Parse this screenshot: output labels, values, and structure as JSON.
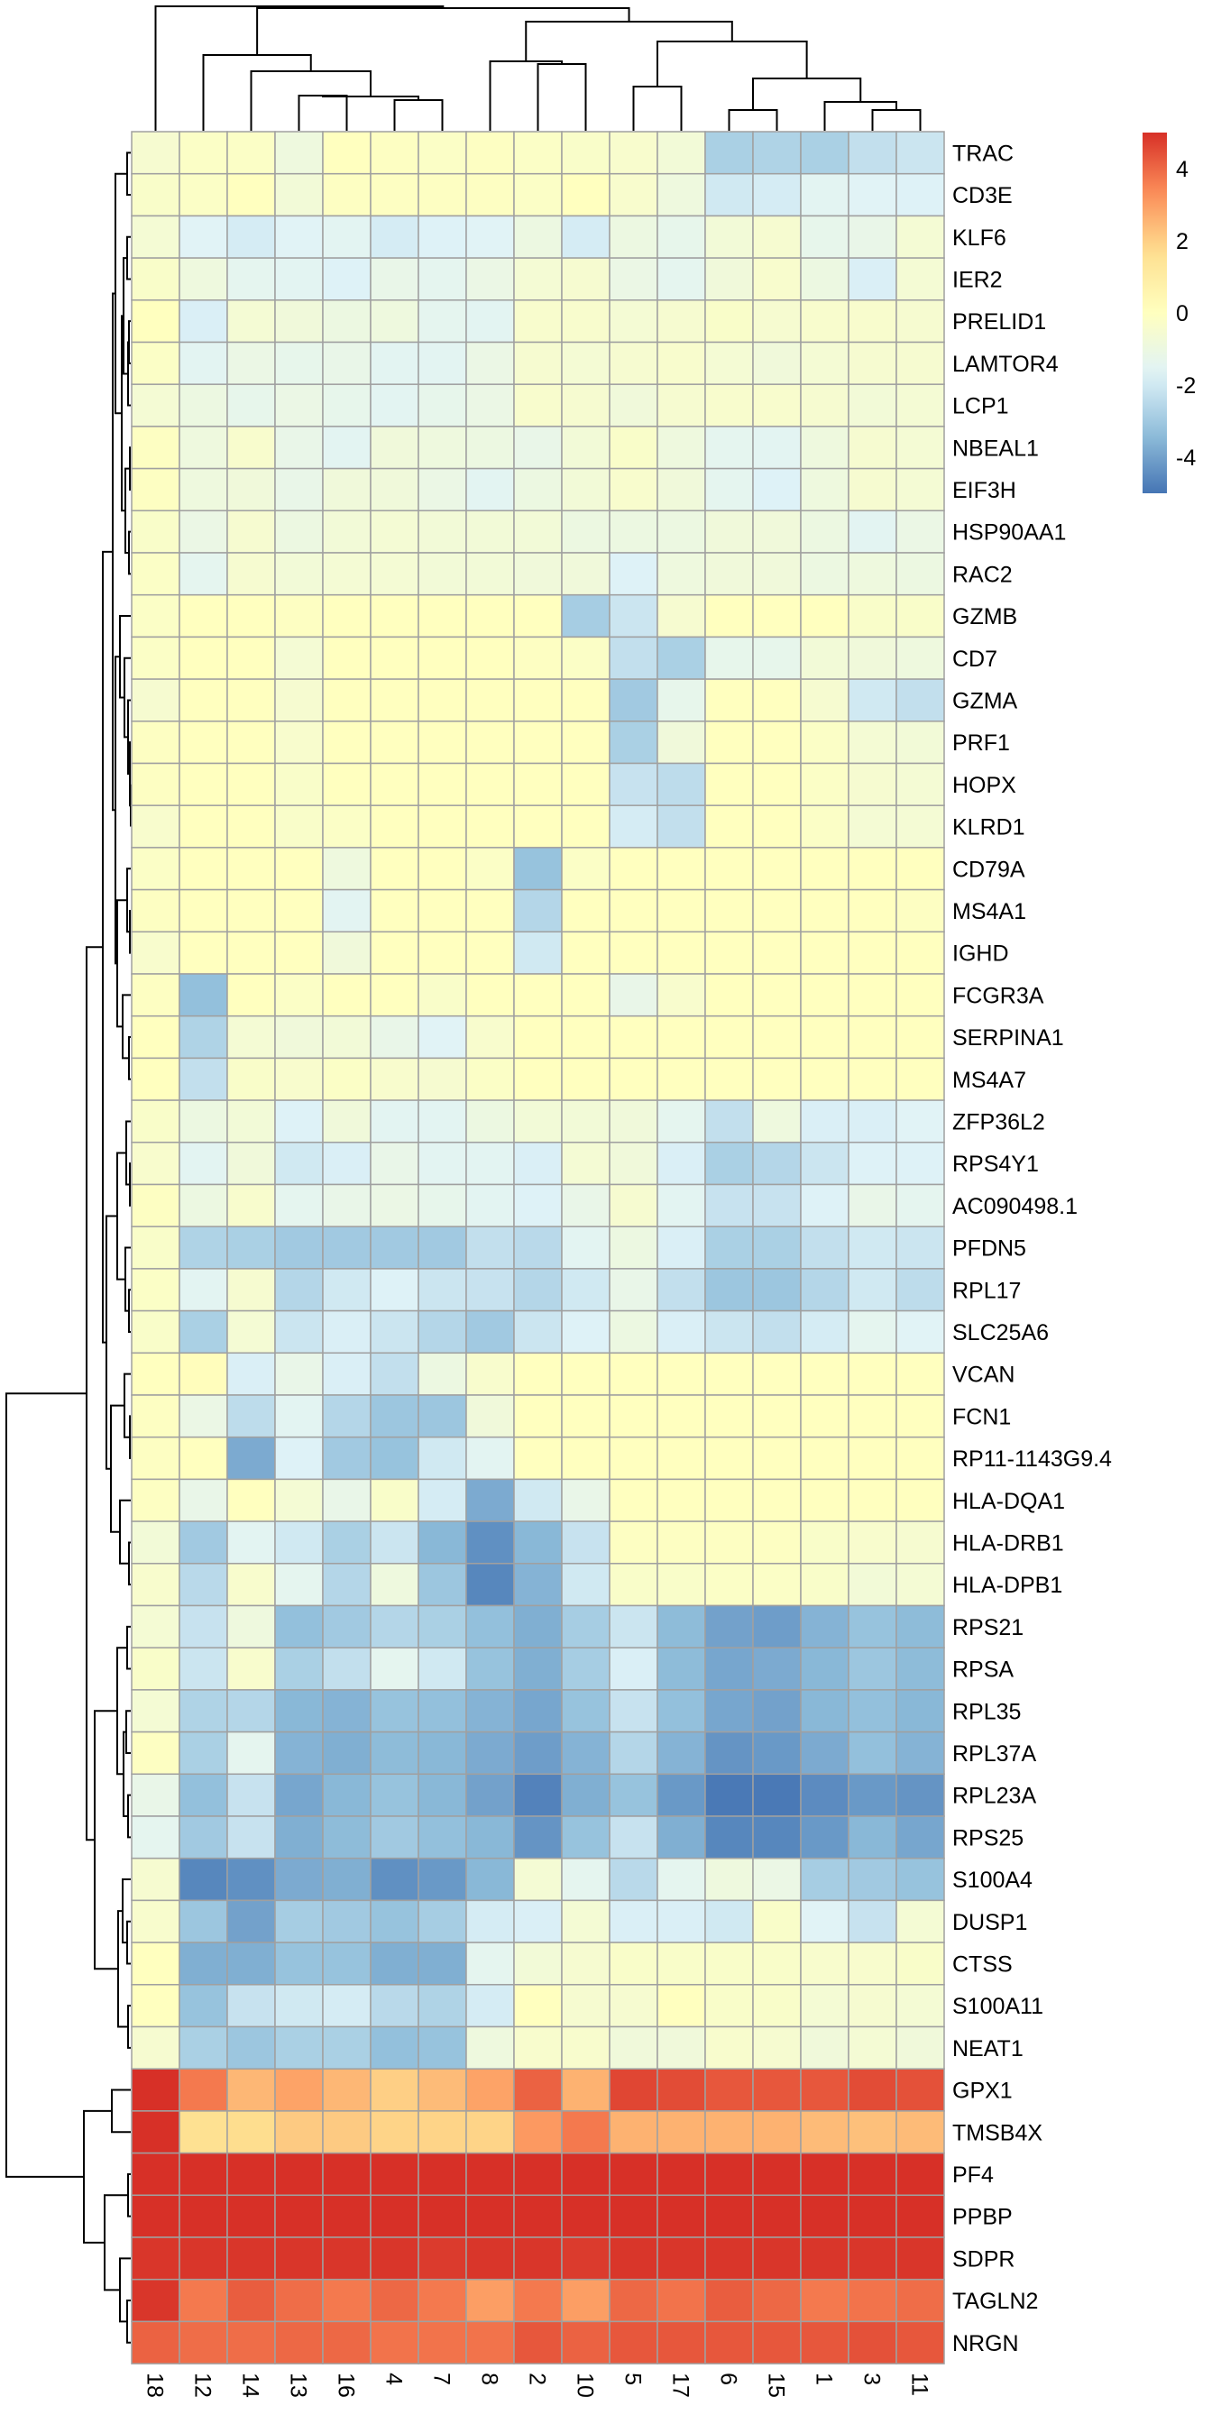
{
  "chart_data": {
    "type": "heatmap",
    "title": "",
    "columns": [
      "18",
      "12",
      "14",
      "13",
      "16",
      "4",
      "7",
      "8",
      "2",
      "10",
      "5",
      "17",
      "6",
      "15",
      "1",
      "3",
      "11"
    ],
    "rows": [
      "TRAC",
      "CD3E",
      "KLF6",
      "IER2",
      "PRELID1",
      "LAMTOR4",
      "LCP1",
      "NBEAL1",
      "EIF3H",
      "HSP90AA1",
      "RAC2",
      "GZMB",
      "CD7",
      "GZMA",
      "PRF1",
      "HOPX",
      "KLRD1",
      "CD79A",
      "MS4A1",
      "IGHD",
      "FCGR3A",
      "SERPINA1",
      "MS4A7",
      "ZFP36L2",
      "RPS4Y1",
      "AC090498.1",
      "PFDN5",
      "RPL17",
      "SLC25A6",
      "VCAN",
      "FCN1",
      "RP11-1143G9.4",
      "HLA-DQA1",
      "HLA-DRB1",
      "HLA-DPB1",
      "RPS21",
      "RPSA",
      "RPL35",
      "RPL37A",
      "RPL23A",
      "RPS25",
      "S100A4",
      "DUSP1",
      "CTSS",
      "S100A11",
      "NEAT1",
      "GPX1",
      "TMSB4X",
      "PF4",
      "PPBP",
      "SDPR",
      "TAGLN2",
      "NRGN"
    ],
    "values": [
      [
        -0.5,
        -0.2,
        -0.2,
        -0.9,
        0,
        -0.1,
        -0.2,
        -0.1,
        -0.2,
        -0.3,
        -0.4,
        -0.7,
        -2.8,
        -2.7,
        -2.8,
        -2.3,
        -2.1
      ],
      [
        -0.3,
        -0.2,
        0,
        -0.7,
        -0.1,
        -0.1,
        -0.1,
        -0.1,
        -0.2,
        0,
        -0.4,
        -0.9,
        -2.0,
        -1.9,
        -1.5,
        -1.6,
        -1.7
      ],
      [
        -0.6,
        -1.6,
        -1.9,
        -1.6,
        -1.5,
        -1.9,
        -1.7,
        -1.6,
        -1.0,
        -1.9,
        -1.0,
        -1.3,
        -0.7,
        -0.5,
        -1.3,
        -1.2,
        -0.6
      ],
      [
        -0.3,
        -0.9,
        -1.4,
        -1.5,
        -1.7,
        -1.2,
        -1.4,
        -1.1,
        -0.6,
        -0.5,
        -1.1,
        -1.4,
        -0.8,
        -0.4,
        -1.0,
        -1.8,
        -0.6
      ],
      [
        0,
        -1.8,
        -0.6,
        -0.8,
        -1.0,
        -0.9,
        -1.4,
        -1.5,
        -0.4,
        -0.4,
        -0.6,
        -0.5,
        -0.3,
        -0.5,
        -0.4,
        -0.4,
        -0.5
      ],
      [
        -0.2,
        -1.5,
        -1.1,
        -1.3,
        -1.2,
        -1.5,
        -1.5,
        -1.1,
        -0.5,
        -0.6,
        -0.5,
        -0.4,
        -0.6,
        -0.8,
        -0.6,
        -0.5,
        -0.5
      ],
      [
        -0.6,
        -1.0,
        -1.3,
        -1.1,
        -1.3,
        -1.5,
        -1.3,
        -1.1,
        -0.4,
        -0.5,
        -0.8,
        -0.5,
        -0.4,
        -0.4,
        -0.5,
        -0.7,
        -0.6
      ],
      [
        -0.1,
        -0.9,
        -0.4,
        -1.2,
        -1.5,
        -0.8,
        -0.9,
        -1.0,
        -1.2,
        -0.7,
        -0.3,
        -0.9,
        -1.4,
        -1.5,
        -0.9,
        -0.5,
        -0.6
      ],
      [
        -0.1,
        -0.9,
        -0.8,
        -1.2,
        -0.8,
        -0.8,
        -1.1,
        -1.5,
        -1.0,
        -0.7,
        -0.4,
        -0.8,
        -1.4,
        -1.7,
        -0.9,
        -0.5,
        -0.6
      ],
      [
        -0.3,
        -1.1,
        -0.5,
        -1.0,
        -0.7,
        -0.6,
        -0.7,
        -0.7,
        -0.7,
        -1.0,
        -1.0,
        -1.0,
        -0.8,
        -0.8,
        -1.0,
        -1.5,
        -1.1
      ],
      [
        -0.2,
        -1.4,
        -0.5,
        -0.7,
        -0.6,
        -0.6,
        -0.7,
        -0.7,
        -0.8,
        -0.8,
        -1.7,
        -0.9,
        -0.8,
        -0.8,
        -1.0,
        -0.9,
        -1.0
      ],
      [
        -0.2,
        0,
        0,
        -0.1,
        0,
        0,
        0,
        0,
        0,
        -2.9,
        -2.1,
        -0.5,
        0,
        0,
        0,
        -0.3,
        -0.3
      ],
      [
        -0.2,
        0,
        0,
        -0.6,
        0,
        0,
        0,
        0,
        -0.1,
        -0.2,
        -2.3,
        -2.8,
        -1.3,
        -1.3,
        -0.7,
        -0.8,
        -0.9
      ],
      [
        -0.5,
        0,
        0,
        -0.5,
        0,
        0,
        0,
        0,
        0,
        0,
        -3.0,
        -1.3,
        0,
        0,
        -0.5,
        -2.0,
        -2.3
      ],
      [
        -0.1,
        0,
        0,
        -0.4,
        0,
        0,
        0,
        0,
        0,
        0,
        -2.8,
        -0.8,
        0,
        0,
        -0.2,
        -0.6,
        -0.7
      ],
      [
        -0.1,
        0,
        0,
        -0.3,
        0,
        0,
        0,
        0,
        0,
        0,
        -2.2,
        -2.4,
        0,
        0,
        -0.2,
        -0.5,
        -0.6
      ],
      [
        -0.4,
        0,
        0,
        -0.3,
        -0.2,
        0,
        0,
        0,
        0,
        0,
        -1.9,
        -2.3,
        0,
        0,
        -0.2,
        -0.6,
        -0.6
      ],
      [
        -0.2,
        0,
        0,
        0,
        -0.9,
        0,
        0,
        -0.2,
        -3.2,
        -0.2,
        0,
        0,
        0,
        0,
        0,
        0,
        0
      ],
      [
        -0.1,
        0,
        0,
        0,
        -1.5,
        0,
        0,
        0,
        -2.6,
        0,
        0,
        0,
        0,
        0,
        0,
        0,
        -0.1
      ],
      [
        -0.4,
        0,
        0,
        0,
        -0.8,
        0,
        0,
        0,
        -2.0,
        0,
        0,
        0,
        0,
        0,
        0,
        0,
        0
      ],
      [
        -0.1,
        -3.3,
        0,
        -0.2,
        0,
        0,
        -0.3,
        0,
        0,
        0,
        -1.2,
        -0.4,
        0,
        0,
        0,
        0,
        0
      ],
      [
        0,
        -2.7,
        -0.6,
        -0.8,
        -0.7,
        -1.2,
        -1.6,
        -0.4,
        0,
        0,
        0,
        0,
        0,
        0,
        0,
        0,
        0
      ],
      [
        0,
        -2.3,
        -0.3,
        -0.4,
        -0.2,
        -0.4,
        -0.5,
        -0.2,
        0,
        0,
        0,
        0,
        0,
        0,
        0,
        0,
        0
      ],
      [
        -0.3,
        -1.0,
        -0.7,
        -1.7,
        -0.8,
        -1.5,
        -1.5,
        -1.0,
        -0.7,
        -0.7,
        -0.8,
        -1.4,
        -2.3,
        -0.9,
        -1.8,
        -1.8,
        -1.6
      ],
      [
        -0.4,
        -1.5,
        -0.8,
        -2.0,
        -1.8,
        -1.2,
        -1.5,
        -1.5,
        -1.8,
        -0.6,
        -0.8,
        -1.8,
        -2.8,
        -2.6,
        -2.1,
        -1.7,
        -1.7
      ],
      [
        -0.1,
        -1.0,
        -0.4,
        -1.4,
        -1.2,
        -1.1,
        -1.3,
        -1.5,
        -1.7,
        -1.2,
        -0.5,
        -1.5,
        -2.2,
        -2.2,
        -1.7,
        -1.2,
        -1.4
      ],
      [
        -0.3,
        -2.7,
        -2.8,
        -3.0,
        -3.0,
        -3.0,
        -3.0,
        -2.3,
        -2.5,
        -1.5,
        -1.0,
        -1.8,
        -2.8,
        -2.8,
        -2.3,
        -2.0,
        -2.1
      ],
      [
        -0.2,
        -1.5,
        -0.5,
        -2.6,
        -2.0,
        -1.7,
        -2.1,
        -2.2,
        -2.6,
        -2.0,
        -1.2,
        -2.3,
        -3.1,
        -3.1,
        -2.6,
        -2.0,
        -2.4
      ],
      [
        -0.3,
        -2.8,
        -0.6,
        -2.1,
        -1.8,
        -2.1,
        -2.6,
        -3.0,
        -2.1,
        -1.7,
        -1.0,
        -1.8,
        -2.1,
        -2.3,
        -1.9,
        -1.4,
        -1.6
      ],
      [
        0,
        0.1,
        -1.8,
        -1.2,
        -1.8,
        -2.3,
        -1.0,
        -0.4,
        0,
        0,
        0,
        0,
        0,
        0,
        0,
        0,
        0
      ],
      [
        -0.1,
        -1.1,
        -2.4,
        -1.5,
        -2.6,
        -3.1,
        -3.1,
        -0.8,
        0,
        0,
        0,
        0,
        0,
        0,
        0,
        0,
        0
      ],
      [
        -0.1,
        0,
        -3.8,
        -1.7,
        -3.0,
        -3.2,
        -2.0,
        -1.5,
        0,
        0,
        0,
        0,
        0,
        0,
        0,
        0,
        0
      ],
      [
        -0.1,
        -1.2,
        0,
        -0.6,
        -1.2,
        -0.3,
        -1.9,
        -3.8,
        -2.0,
        -1.2,
        0,
        0,
        0,
        0,
        0,
        0,
        0
      ],
      [
        -0.7,
        -3.0,
        -1.5,
        -2.0,
        -2.8,
        -2.1,
        -3.5,
        -4.4,
        -3.5,
        -2.2,
        -0.1,
        -0.1,
        -0.1,
        -0.1,
        -0.3,
        -0.4,
        -0.5
      ],
      [
        -0.4,
        -2.5,
        -0.4,
        -1.4,
        -2.6,
        -0.9,
        -3.1,
        -4.6,
        -3.6,
        -2.0,
        -0.3,
        -0.3,
        -0.2,
        -0.2,
        -0.3,
        -0.7,
        -0.6
      ],
      [
        -0.6,
        -2.2,
        -0.9,
        -3.3,
        -3.0,
        -2.6,
        -2.8,
        -3.3,
        -3.7,
        -2.9,
        -2.1,
        -3.4,
        -4.0,
        -4.1,
        -3.6,
        -3.2,
        -3.4
      ],
      [
        -0.3,
        -2.1,
        -0.4,
        -2.8,
        -2.3,
        -1.4,
        -2.0,
        -3.2,
        -3.7,
        -2.9,
        -1.8,
        -3.4,
        -3.9,
        -3.8,
        -3.5,
        -3.1,
        -3.4
      ],
      [
        -0.6,
        -2.7,
        -2.6,
        -3.5,
        -3.6,
        -3.2,
        -3.3,
        -3.6,
        -3.9,
        -3.2,
        -2.2,
        -3.3,
        -3.9,
        -4.0,
        -3.5,
        -3.3,
        -3.5
      ],
      [
        -0.1,
        -2.8,
        -1.4,
        -3.6,
        -3.7,
        -3.4,
        -3.5,
        -3.8,
        -4.1,
        -3.6,
        -2.6,
        -3.6,
        -4.3,
        -4.2,
        -3.8,
        -3.3,
        -3.6
      ],
      [
        -1.2,
        -3.3,
        -2.2,
        -3.9,
        -3.5,
        -3.2,
        -3.5,
        -4.0,
        -4.7,
        -3.7,
        -3.2,
        -4.2,
        -4.9,
        -4.9,
        -4.5,
        -4.2,
        -4.3
      ],
      [
        -1.4,
        -3.0,
        -2.2,
        -3.7,
        -3.4,
        -3.0,
        -3.3,
        -3.5,
        -4.3,
        -3.2,
        -2.2,
        -3.7,
        -4.6,
        -4.6,
        -4.2,
        -3.5,
        -3.9
      ],
      [
        -0.5,
        -4.6,
        -4.4,
        -3.8,
        -3.7,
        -4.4,
        -4.2,
        -3.5,
        -0.6,
        -1.4,
        -2.5,
        -1.4,
        -0.9,
        -1.1,
        -2.9,
        -3.0,
        -3.2
      ],
      [
        -0.4,
        -3.1,
        -4.0,
        -2.9,
        -3.0,
        -3.2,
        -2.9,
        -1.9,
        -1.8,
        -0.6,
        -1.8,
        -1.8,
        -2.0,
        -0.3,
        -1.6,
        -2.2,
        -0.6
      ],
      [
        0,
        -3.7,
        -3.7,
        -3.2,
        -3.2,
        -3.7,
        -3.7,
        -1.4,
        -0.7,
        -0.5,
        -0.3,
        -0.3,
        -0.3,
        -0.3,
        -0.4,
        -0.4,
        -0.3
      ],
      [
        0,
        -3.2,
        -2.2,
        -2.0,
        -1.9,
        -2.5,
        -2.7,
        -1.9,
        0,
        -0.5,
        -0.5,
        0,
        -0.3,
        -0.3,
        -0.6,
        -0.5,
        -0.6
      ],
      [
        -0.5,
        -2.8,
        -3.1,
        -2.8,
        -2.8,
        -3.3,
        -3.2,
        -0.9,
        -0.4,
        -0.4,
        -0.8,
        -0.8,
        -0.4,
        -0.5,
        -0.8,
        -0.6,
        -0.8
      ],
      [
        5,
        3.7,
        2.5,
        2.9,
        2.5,
        2.0,
        2.4,
        2.9,
        4.1,
        2.6,
        4.6,
        4.5,
        4.3,
        4.3,
        4.3,
        4.5,
        4.4
      ],
      [
        5,
        1.6,
        1.7,
        2.1,
        2.1,
        1.9,
        1.9,
        1.9,
        3.1,
        3.7,
        2.6,
        2.6,
        2.6,
        2.6,
        2.4,
        2.3,
        2.4
      ],
      [
        5,
        5,
        5,
        5,
        5,
        5,
        5,
        5,
        5,
        5,
        5,
        5,
        5,
        5,
        5,
        5,
        5
      ],
      [
        5,
        5,
        5,
        5,
        5,
        5,
        5,
        5,
        5,
        5,
        5,
        5,
        5,
        5,
        5,
        5,
        5
      ],
      [
        4.9,
        4.9,
        4.9,
        4.9,
        4.9,
        4.9,
        4.8,
        4.9,
        4.9,
        4.8,
        4.9,
        4.9,
        4.9,
        4.9,
        4.9,
        4.9,
        4.9
      ],
      [
        4.9,
        3.7,
        4.2,
        3.9,
        3.7,
        4.0,
        3.7,
        3.0,
        3.7,
        3.0,
        4.0,
        3.8,
        4.2,
        4.0,
        3.7,
        3.8,
        3.9
      ],
      [
        4.1,
        3.9,
        3.9,
        4.0,
        4.0,
        3.8,
        3.8,
        3.8,
        4.3,
        4.1,
        4.3,
        4.3,
        4.3,
        4.3,
        4.3,
        4.4,
        4.3
      ]
    ],
    "color_range": [
      -5,
      5
    ],
    "palette": [
      "#4575B4",
      "#91BFDB",
      "#E0F3F8",
      "#FFFFBF",
      "#FEE090",
      "#FC8D59",
      "#D73027"
    ],
    "legend": {
      "position": "top-right",
      "ticks": [
        "4",
        "2",
        "0",
        "-2",
        "-4"
      ],
      "tick_values": [
        4,
        2,
        0,
        -2,
        -4
      ]
    },
    "row_dendrogram": true,
    "column_dendrogram": true,
    "cell_border_color": "#A0A0A0"
  }
}
